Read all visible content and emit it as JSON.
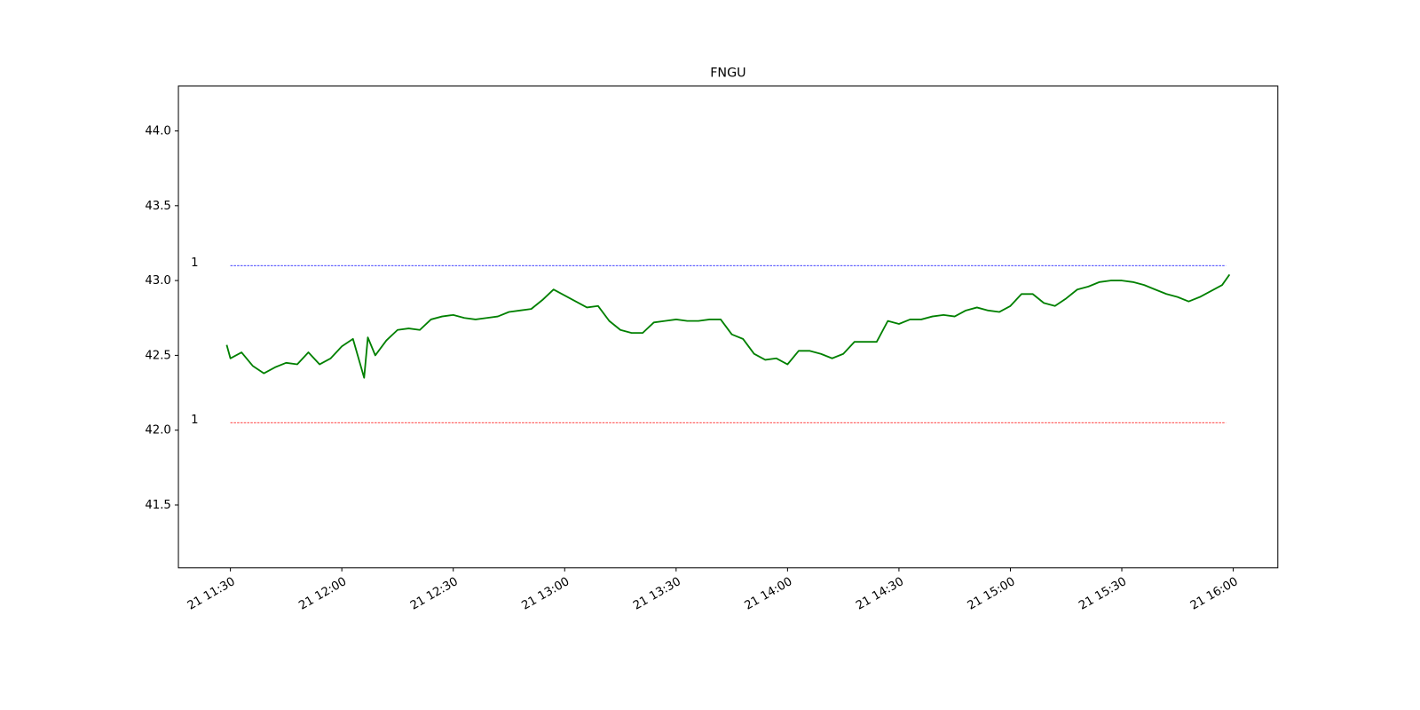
{
  "chart_data": {
    "type": "line",
    "title": "FNGU",
    "x": [
      "21 11:29",
      "21 11:30",
      "21 11:33",
      "21 11:36",
      "21 11:39",
      "21 11:42",
      "21 11:45",
      "21 11:48",
      "21 11:51",
      "21 11:54",
      "21 11:57",
      "21 12:00",
      "21 12:03",
      "21 12:06",
      "21 12:07",
      "21 12:09",
      "21 12:12",
      "21 12:15",
      "21 12:18",
      "21 12:21",
      "21 12:24",
      "21 12:27",
      "21 12:30",
      "21 12:33",
      "21 12:36",
      "21 12:39",
      "21 12:42",
      "21 12:45",
      "21 12:48",
      "21 12:51",
      "21 12:54",
      "21 12:57",
      "21 13:00",
      "21 13:03",
      "21 13:06",
      "21 13:09",
      "21 13:12",
      "21 13:15",
      "21 13:18",
      "21 13:21",
      "21 13:24",
      "21 13:27",
      "21 13:30",
      "21 13:33",
      "21 13:36",
      "21 13:39",
      "21 13:42",
      "21 13:45",
      "21 13:48",
      "21 13:51",
      "21 13:54",
      "21 13:57",
      "21 14:00",
      "21 14:03",
      "21 14:06",
      "21 14:09",
      "21 14:12",
      "21 14:15",
      "21 14:18",
      "21 14:21",
      "21 14:24",
      "21 14:27",
      "21 14:30",
      "21 14:33",
      "21 14:36",
      "21 14:39",
      "21 14:42",
      "21 14:45",
      "21 14:48",
      "21 14:51",
      "21 14:54",
      "21 14:57",
      "21 15:00",
      "21 15:03",
      "21 15:06",
      "21 15:09",
      "21 15:12",
      "21 15:15",
      "21 15:18",
      "21 15:21",
      "21 15:24",
      "21 15:27",
      "21 15:30",
      "21 15:33",
      "21 15:36",
      "21 15:39",
      "21 15:42",
      "21 15:45",
      "21 15:48",
      "21 15:51",
      "21 15:54",
      "21 15:57",
      "21 15:59"
    ],
    "series": [
      {
        "name": "FNGU",
        "color": "#008000",
        "values": [
          42.57,
          42.48,
          42.52,
          42.43,
          42.38,
          42.42,
          42.45,
          42.44,
          42.52,
          42.44,
          42.48,
          42.56,
          42.61,
          42.35,
          42.62,
          42.5,
          42.6,
          42.67,
          42.68,
          42.67,
          42.74,
          42.76,
          42.77,
          42.75,
          42.74,
          42.75,
          42.76,
          42.79,
          42.8,
          42.81,
          42.87,
          42.94,
          42.9,
          42.86,
          42.82,
          42.83,
          42.73,
          42.67,
          42.65,
          42.65,
          42.72,
          42.73,
          42.74,
          42.73,
          42.73,
          42.74,
          42.74,
          42.64,
          42.61,
          42.51,
          42.47,
          42.48,
          42.44,
          42.53,
          42.53,
          42.51,
          42.48,
          42.51,
          42.59,
          42.59,
          42.59,
          42.73,
          42.71,
          42.74,
          42.74,
          42.76,
          42.77,
          42.76,
          42.8,
          42.82,
          42.8,
          42.79,
          42.83,
          42.91,
          42.91,
          42.85,
          42.83,
          42.88,
          42.94,
          42.96,
          42.99,
          43.0,
          43.0,
          42.99,
          42.97,
          42.94,
          42.91,
          42.89,
          42.86,
          42.89,
          42.93,
          42.97,
          43.04
        ]
      }
    ],
    "hlines": [
      {
        "value": 43.1,
        "color": "#0000ff",
        "label": "1",
        "xrange": [
          "21 11:30",
          "21 15:58"
        ]
      },
      {
        "value": 42.05,
        "color": "#ff0000",
        "label": "1",
        "xrange": [
          "21 11:30",
          "21 15:58"
        ]
      }
    ],
    "xlim": [
      "21 11:16",
      "21 16:12"
    ],
    "xticks": [
      "21 11:30",
      "21 12:00",
      "21 12:30",
      "21 13:00",
      "21 13:30",
      "21 14:00",
      "21 14:30",
      "21 15:00",
      "21 15:30",
      "21 16:00"
    ],
    "ylim": [
      41.08,
      44.3
    ],
    "yticks": [
      41.5,
      {
        "value": 42,
        "label": "42.0"
      },
      42.5,
      {
        "value": 43,
        "label": "43.0"
      },
      43.5,
      {
        "value": 44,
        "label": "44.0"
      }
    ],
    "grid": false
  }
}
